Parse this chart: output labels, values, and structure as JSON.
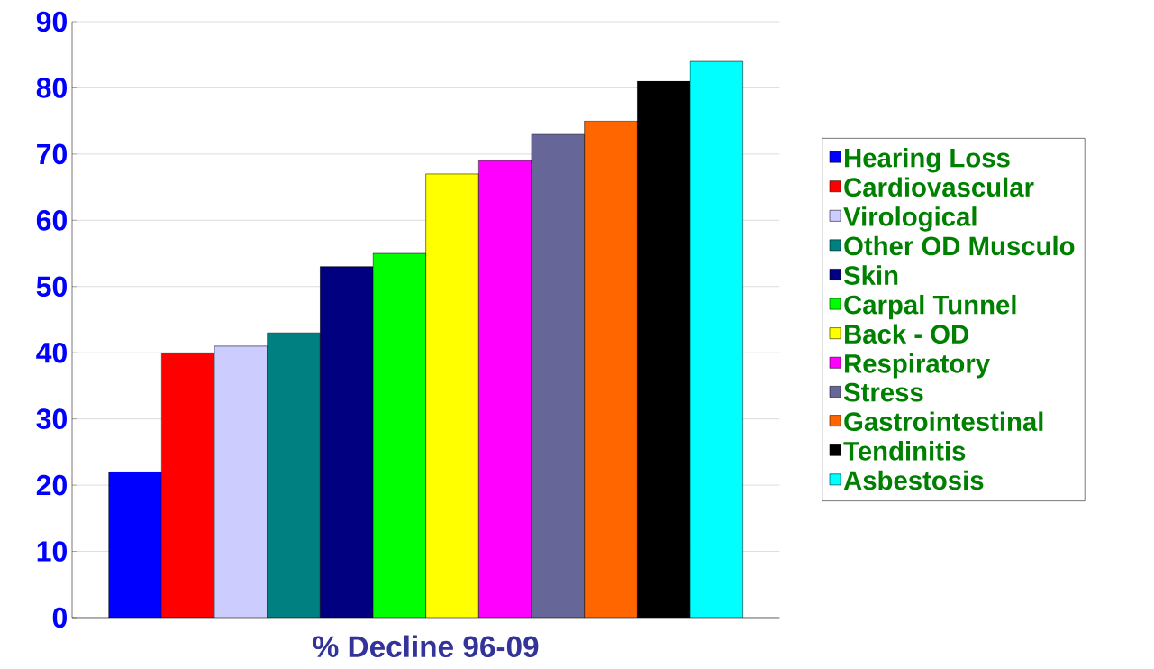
{
  "chart_data": {
    "type": "bar",
    "xlabel": "% Decline 96-09",
    "categories": [
      null
    ],
    "ylim": [
      0,
      90
    ],
    "yticks": [
      0,
      10,
      20,
      30,
      40,
      50,
      60,
      70,
      80,
      90
    ],
    "grid": "y",
    "legend": "right",
    "tick_labels": "y",
    "series": [
      {
        "name": "Hearing Loss",
        "color": "#0000ff",
        "values": [
          22
        ]
      },
      {
        "name": "Cardiovascular",
        "color": "#ff0000",
        "values": [
          40
        ]
      },
      {
        "name": "Virological",
        "color": "#ccccff",
        "values": [
          41
        ]
      },
      {
        "name": "Other OD Musculo",
        "color": "#008080",
        "values": [
          43
        ]
      },
      {
        "name": "Skin",
        "color": "#000080",
        "values": [
          53
        ]
      },
      {
        "name": "Carpal Tunnel",
        "color": "#00ff00",
        "values": [
          55
        ]
      },
      {
        "name": "Back - OD",
        "color": "#ffff00",
        "values": [
          67
        ]
      },
      {
        "name": "Respiratory",
        "color": "#ff00ff",
        "values": [
          69
        ]
      },
      {
        "name": "Stress",
        "color": "#666699",
        "values": [
          73
        ]
      },
      {
        "name": "Gastrointestinal",
        "color": "#ff6600",
        "values": [
          75
        ]
      },
      {
        "name": "Tendinitis",
        "color": "#000000",
        "values": [
          81
        ]
      },
      {
        "name": "Asbestosis",
        "color": "#00ffff",
        "values": [
          84
        ]
      }
    ]
  }
}
